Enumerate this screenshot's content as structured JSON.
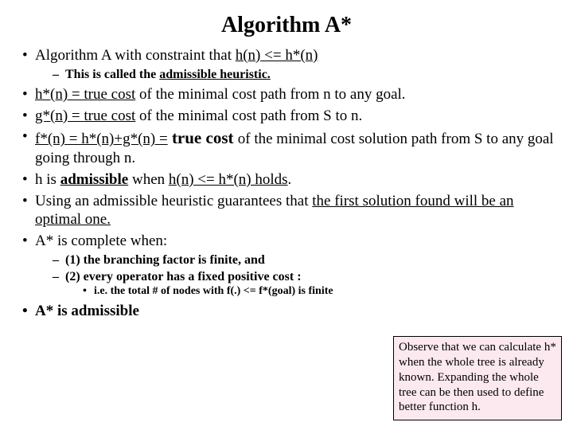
{
  "title": "Algorithm A*",
  "b1_pre": "Algorithm A with constraint that ",
  "b1_u": "h(n) <= h*(n)",
  "b1_sub_pre": "This is called the ",
  "b1_sub_u": "admissible heuristic.",
  "b2_u1": "h*(n) = true cost",
  "b2_rest": " of the minimal cost path from n to any goal.",
  "b3_u1": "g*(n) = true cost",
  "b3_rest": " of the minimal cost path from S to n.",
  "b4_u1": "f*(n) = h*(n)+g*(n) =",
  "b4_tc": " true cost ",
  "b4_rest": "of the minimal cost solution path from S to any goal going through n.",
  "b5_pre": "h is ",
  "b5_u1": "admissible",
  "b5_mid": " when ",
  "b5_u2": "h(n) <= h*(n) holds",
  "b5_end": ".",
  "b6_pre": "Using an admissible heuristic guarantees that ",
  "b6_u": "the first solution found will be an optimal one.",
  "b7": "A* is complete when:",
  "b7s1": "(1) the branching factor is finite, and",
  "b7s2": "(2) every operator has a fixed positive cost :",
  "b7s2s": "i.e. the total # of nodes with f(.) <= f*(goal) is finite",
  "b8": "A* is admissible",
  "callout": "Observe that we can calculate h* when the whole tree is already known. Expanding the whole tree can be then used to define better function h.",
  "colors": {
    "callout_bg": "#fce9ef",
    "callout_border": "#000000",
    "text": "#000000"
  }
}
